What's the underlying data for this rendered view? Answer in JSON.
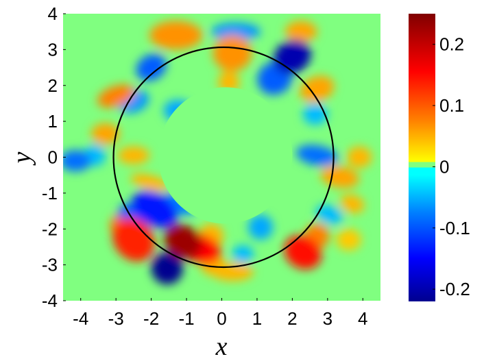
{
  "chart_data": {
    "type": "heatmap",
    "title": "",
    "xlabel": "x",
    "ylabel": "y",
    "xlim": [
      -4.5,
      4.5
    ],
    "ylim": [
      -4,
      4
    ],
    "x_ticks": [
      -4,
      -3,
      -2,
      -1,
      0,
      1,
      2,
      3,
      4
    ],
    "x_tick_labels": [
      "-4",
      "-3",
      "-2",
      "-1",
      "0",
      "1",
      "2",
      "3",
      "4"
    ],
    "y_ticks": [
      -4,
      -3,
      -2,
      -1,
      0,
      1,
      2,
      3,
      4
    ],
    "y_tick_labels": [
      "-4",
      "-3",
      "-2",
      "-1",
      "0",
      "1",
      "2",
      "3",
      "4"
    ],
    "colorbar": {
      "colormap": "jet-like with neutral green band around zero",
      "range": [
        -0.22,
        0.25
      ],
      "ticks": [
        -0.2,
        -0.1,
        0,
        0.1,
        0.2
      ],
      "tick_labels": [
        "-0.2",
        "-0.1",
        "0",
        "0.1",
        "0.2"
      ]
    },
    "overlay_circle": {
      "center": [
        0.05,
        0
      ],
      "radius": 3.12,
      "color": "#000000"
    },
    "background_value": 0,
    "background_color": "#80ff80",
    "inner_zero_radius": 1.9,
    "blobs": [
      {
        "x": -1.1,
        "y": -2.35,
        "rx": 0.55,
        "ry": 0.45,
        "rot": -30,
        "value": 0.23
      },
      {
        "x": -0.6,
        "y": -2.55,
        "rx": 0.6,
        "ry": 0.4,
        "rot": -20,
        "value": 0.16
      },
      {
        "x": -2.5,
        "y": -2.3,
        "rx": 0.55,
        "ry": 0.65,
        "rot": 40,
        "value": 0.14
      },
      {
        "x": -2.8,
        "y": -1.95,
        "rx": 0.35,
        "ry": 0.4,
        "rot": 30,
        "value": 0.08
      },
      {
        "x": 2.3,
        "y": -2.65,
        "rx": 0.55,
        "ry": 0.45,
        "rot": -30,
        "value": 0.15
      },
      {
        "x": 2.7,
        "y": -2.2,
        "rx": 0.35,
        "ry": 0.35,
        "rot": 0,
        "value": 0.08
      },
      {
        "x": 0.3,
        "y": -3.2,
        "rx": 0.6,
        "ry": 0.25,
        "rot": 0,
        "value": 0.05
      },
      {
        "x": -0.3,
        "y": -2.2,
        "rx": 0.35,
        "ry": 0.35,
        "rot": 0,
        "value": 0.05
      },
      {
        "x": -1.55,
        "y": -3.1,
        "rx": 0.45,
        "ry": 0.45,
        "rot": 20,
        "value": -0.22
      },
      {
        "x": -1.9,
        "y": -1.45,
        "rx": 0.7,
        "ry": 0.45,
        "rot": -30,
        "value": -0.14
      },
      {
        "x": -2.55,
        "y": -1.6,
        "rx": 0.4,
        "ry": 0.3,
        "rot": -20,
        "value": -0.1
      },
      {
        "x": -1.2,
        "y": -1.3,
        "rx": 0.5,
        "ry": 0.28,
        "rot": -20,
        "value": -0.08
      },
      {
        "x": 1.1,
        "y": -1.95,
        "rx": 0.35,
        "ry": 0.35,
        "rot": 0,
        "value": -0.06
      },
      {
        "x": 0.6,
        "y": -2.7,
        "rx": 0.3,
        "ry": 0.25,
        "rot": 0,
        "value": -0.05
      },
      {
        "x": 3.05,
        "y": -1.6,
        "rx": 0.4,
        "ry": 0.25,
        "rot": -20,
        "value": -0.05
      },
      {
        "x": 2.0,
        "y": 2.8,
        "rx": 0.55,
        "ry": 0.45,
        "rot": 30,
        "value": -0.2
      },
      {
        "x": 1.5,
        "y": 2.2,
        "rx": 0.5,
        "ry": 0.45,
        "rot": 30,
        "value": -0.1
      },
      {
        "x": 0.4,
        "y": 3.5,
        "rx": 0.7,
        "ry": 0.25,
        "rot": 0,
        "value": -0.07
      },
      {
        "x": -2.0,
        "y": 2.5,
        "rx": 0.45,
        "ry": 0.35,
        "rot": 30,
        "value": -0.1
      },
      {
        "x": -2.5,
        "y": 1.55,
        "rx": 0.45,
        "ry": 0.3,
        "rot": 20,
        "value": -0.07
      },
      {
        "x": -1.25,
        "y": 1.3,
        "rx": 0.4,
        "ry": 0.3,
        "rot": 0,
        "value": -0.06
      },
      {
        "x": -4.15,
        "y": -0.1,
        "rx": 0.45,
        "ry": 0.3,
        "rot": 0,
        "value": -0.09
      },
      {
        "x": -3.6,
        "y": 0.05,
        "rx": 0.3,
        "ry": 0.3,
        "rot": 0,
        "value": -0.05
      },
      {
        "x": 2.7,
        "y": 0.05,
        "rx": 0.6,
        "ry": 0.28,
        "rot": -10,
        "value": -0.09
      },
      {
        "x": 2.65,
        "y": 1.2,
        "rx": 0.35,
        "ry": 0.3,
        "rot": 0,
        "value": -0.05
      },
      {
        "x": 0.3,
        "y": 2.9,
        "rx": 0.55,
        "ry": 0.5,
        "rot": 0,
        "value": 0.07
      },
      {
        "x": -1.3,
        "y": 3.4,
        "rx": 0.75,
        "ry": 0.4,
        "rot": 0,
        "value": 0.07
      },
      {
        "x": 2.25,
        "y": 3.5,
        "rx": 0.45,
        "ry": 0.3,
        "rot": 0,
        "value": 0.06
      },
      {
        "x": 2.7,
        "y": 1.9,
        "rx": 0.5,
        "ry": 0.35,
        "rot": 20,
        "value": 0.06
      },
      {
        "x": -3.0,
        "y": 1.7,
        "rx": 0.55,
        "ry": 0.28,
        "rot": 20,
        "value": 0.08
      },
      {
        "x": -3.3,
        "y": 0.65,
        "rx": 0.4,
        "ry": 0.3,
        "rot": 0,
        "value": 0.06
      },
      {
        "x": -2.5,
        "y": 0.05,
        "rx": 0.45,
        "ry": 0.25,
        "rot": 0,
        "value": 0.05
      },
      {
        "x": 3.35,
        "y": -0.55,
        "rx": 0.55,
        "ry": 0.3,
        "rot": -10,
        "value": 0.06
      },
      {
        "x": 3.7,
        "y": -1.3,
        "rx": 0.35,
        "ry": 0.25,
        "rot": -20,
        "value": 0.05
      },
      {
        "x": 3.9,
        "y": 0.0,
        "rx": 0.35,
        "ry": 0.3,
        "rot": 0,
        "value": 0.05
      },
      {
        "x": -2.05,
        "y": -0.7,
        "rx": 0.55,
        "ry": 0.2,
        "rot": -15,
        "value": 0.05
      },
      {
        "x": 0.2,
        "y": 2.1,
        "rx": 0.3,
        "ry": 0.3,
        "rot": 0,
        "value": 0.05
      },
      {
        "x": -0.25,
        "y": -3.0,
        "rx": 0.35,
        "ry": 0.3,
        "rot": 0,
        "value": 0.05
      },
      {
        "x": 3.6,
        "y": -2.3,
        "rx": 0.35,
        "ry": 0.3,
        "rot": 0,
        "value": 0.04
      }
    ]
  }
}
